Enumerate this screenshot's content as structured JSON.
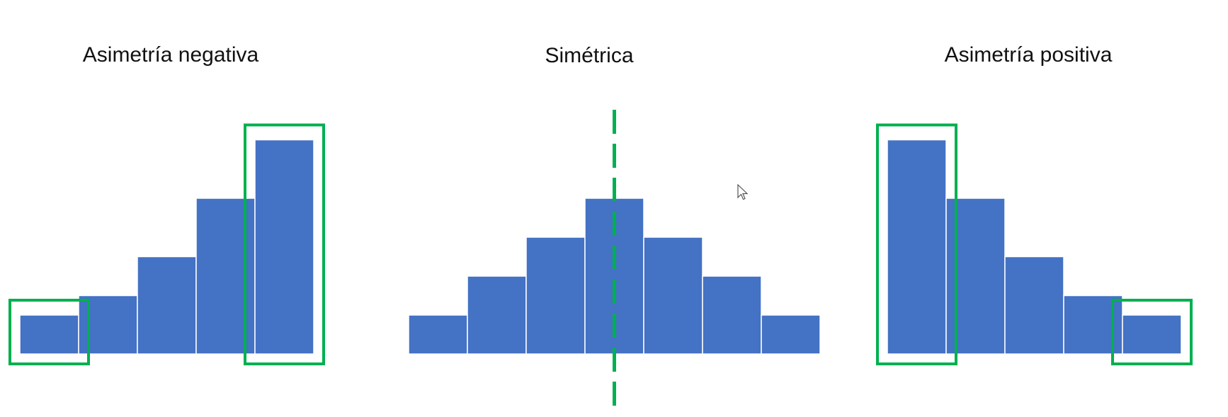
{
  "colors": {
    "bar": "#4472C4",
    "bar_edge": "#ffffff",
    "highlight": "#00B050",
    "background": "#ffffff"
  },
  "chart_data": [
    {
      "type": "bar",
      "title": "Asimetría negativa",
      "values": [
        1.0,
        1.5,
        2.5,
        4.0,
        5.5
      ],
      "highlight_bars": [
        0,
        4
      ],
      "axes_visible": false
    },
    {
      "type": "bar",
      "title": "Simétrica",
      "values": [
        1.0,
        2.0,
        3.0,
        4.0,
        3.0,
        2.0,
        1.0
      ],
      "symmetry_axis": "dashed-vertical-center",
      "axes_visible": false
    },
    {
      "type": "bar",
      "title": "Asimetría positiva",
      "values": [
        5.5,
        4.0,
        2.5,
        1.5,
        1.0
      ],
      "highlight_bars": [
        0,
        4
      ],
      "axes_visible": false
    }
  ],
  "icons": {
    "cursor": "mouse-pointer-icon"
  }
}
